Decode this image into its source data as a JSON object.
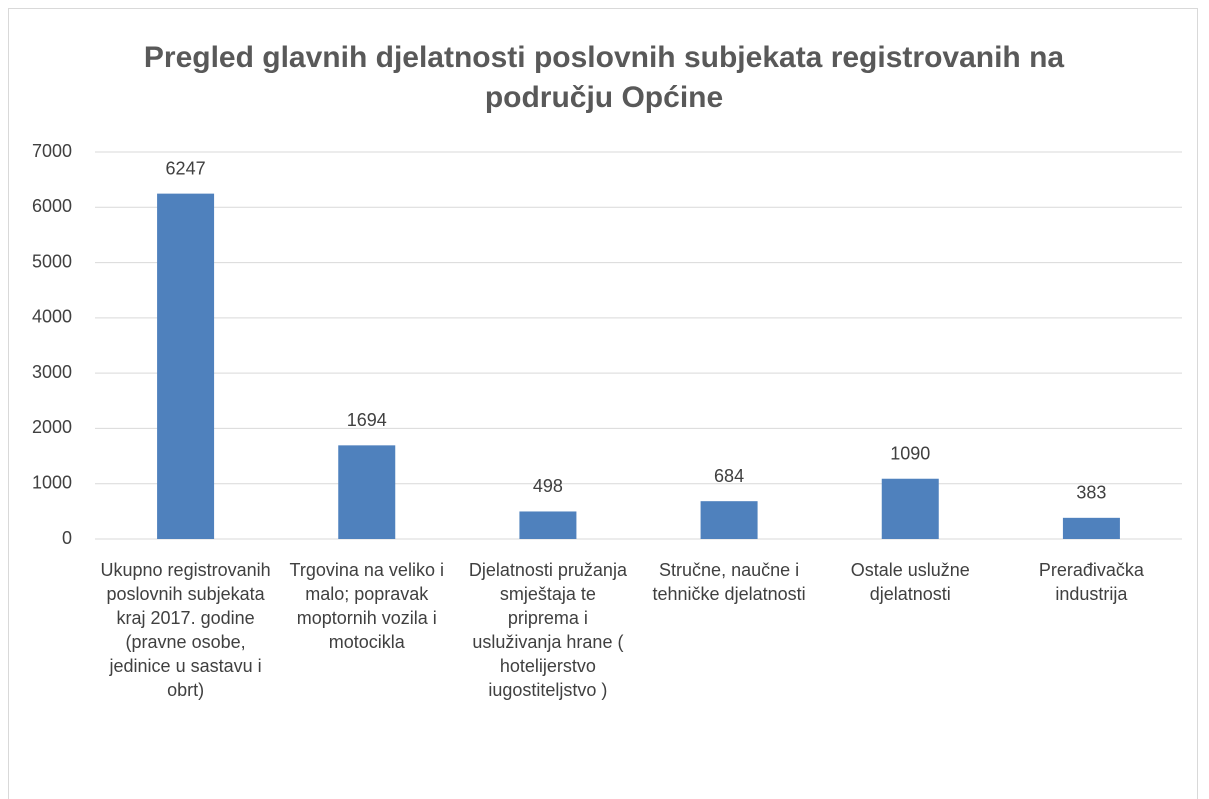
{
  "chart_data": {
    "type": "bar",
    "title": "Pregled glavnih djelatnosti poslovnih subjekata registrovanih na području Općine",
    "categories": [
      "Ukupno registrovanih poslovnih subjekata kraj 2017. godine (pravne osobe, jedinice u sastavu i obrt)",
      "Trgovina na veliko i malo; popravak moptornih vozila i motocikla",
      "Djelatnosti pružanja smještaja te priprema i usluživanja hrane ( hotelijerstvo iugostiteljstvo )",
      "Stručne, naučne i tehničke djelatnosti",
      "Ostale uslužne djelatnosti",
      "Prerađivačka industrija"
    ],
    "values": [
      6247,
      1694,
      498,
      684,
      1090,
      383
    ],
    "color": "#4f81bd",
    "ylim": [
      0,
      7000
    ],
    "yticks": [
      0,
      1000,
      2000,
      3000,
      4000,
      5000,
      6000,
      7000
    ],
    "grid": true
  }
}
